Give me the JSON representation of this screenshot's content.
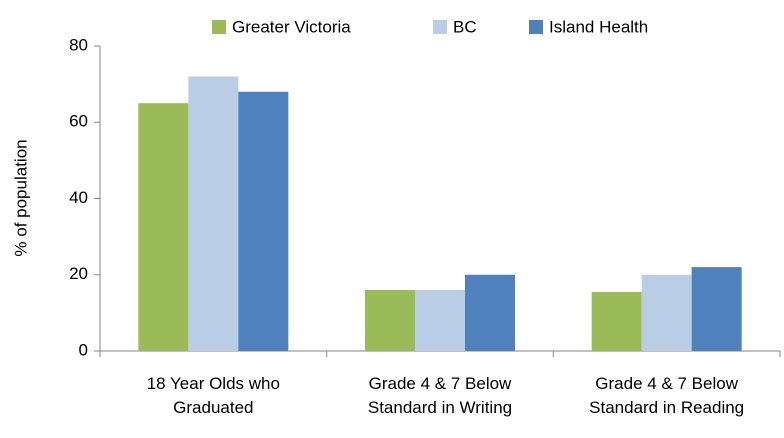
{
  "chart_data": {
    "type": "bar",
    "y_label": "% of population",
    "categories": [
      "18 Year Olds who Graduated",
      "Grade 4 & 7 Below Standard in Writing",
      "Grade 4 & 7 Below Standard in Reading"
    ],
    "series": [
      {
        "name": "Greater Victoria",
        "color": "#9bbb59",
        "values": [
          65,
          16,
          15.5
        ]
      },
      {
        "name": "BC",
        "color": "#b9cde5",
        "values": [
          72,
          16,
          20
        ]
      },
      {
        "name": "Island Health",
        "color": "#4f81bd",
        "values": [
          68,
          20,
          22
        ]
      }
    ],
    "ylim": [
      0,
      80
    ],
    "yticks": [
      0,
      20,
      40,
      60,
      80
    ],
    "grid": false,
    "legend": "top"
  }
}
